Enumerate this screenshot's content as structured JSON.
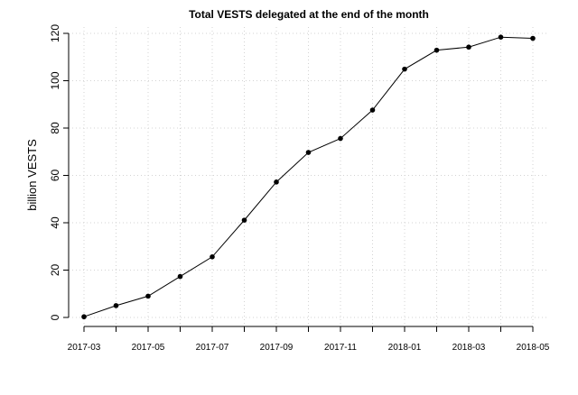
{
  "chart_data": {
    "type": "line",
    "title": "Total VESTS delegated at the end of the month",
    "xlabel": "",
    "ylabel": "billion VESTS",
    "ylim": [
      0,
      120
    ],
    "yticks": [
      0,
      20,
      40,
      60,
      80,
      100,
      120
    ],
    "grid": true,
    "x": [
      "2017-03",
      "2017-04",
      "2017-05",
      "2017-06",
      "2017-07",
      "2017-08",
      "2017-09",
      "2017-10",
      "2017-11",
      "2017-12",
      "2018-01",
      "2018-02",
      "2018-03",
      "2018-04",
      "2018-05"
    ],
    "xtick_labels": [
      "2017-03",
      "2017-05",
      "2017-07",
      "2017-09",
      "2017-11",
      "2018-01",
      "2018-03",
      "2018-05"
    ],
    "series": [
      {
        "values": [
          0.3,
          5.0,
          9.0,
          17.3,
          25.6,
          41.1,
          57.2,
          69.7,
          75.6,
          87.6,
          104.9,
          112.9,
          114.2,
          118.4,
          117.9
        ]
      }
    ]
  }
}
